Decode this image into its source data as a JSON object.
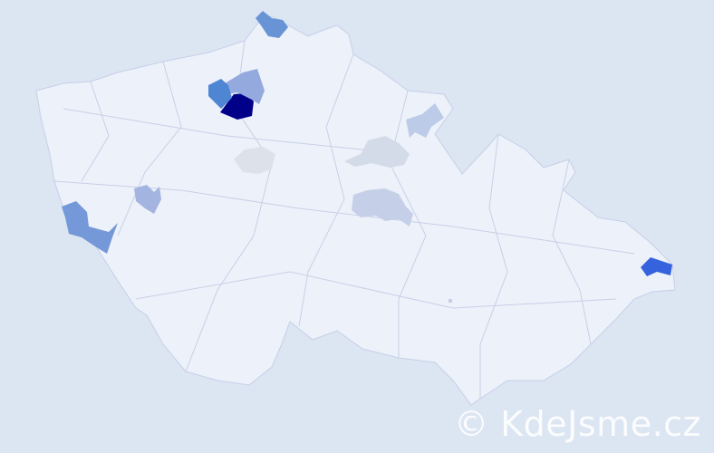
{
  "map": {
    "country_fill": "#edf1f9",
    "border_color": "#c6d0e8",
    "background": "#dce5f2",
    "highlighted_regions": [
      {
        "level": "highest",
        "color": "#000088"
      },
      {
        "level": "high",
        "color": "#3563dd"
      },
      {
        "level": "medium-high",
        "color": "#4f86d4"
      },
      {
        "level": "medium",
        "color": "#6894d6"
      },
      {
        "level": "medium",
        "color": "#7498d8"
      },
      {
        "level": "medium-low",
        "color": "#94aadf"
      },
      {
        "level": "medium-low",
        "color": "#a3b4e0"
      },
      {
        "level": "low",
        "color": "#bccbe8"
      },
      {
        "level": "low",
        "color": "#c5d0e8"
      },
      {
        "level": "lowest",
        "color": "#d4dbe8"
      },
      {
        "level": "lowest",
        "color": "#dde2ea"
      }
    ]
  },
  "watermark": "© KdeJsme.cz"
}
